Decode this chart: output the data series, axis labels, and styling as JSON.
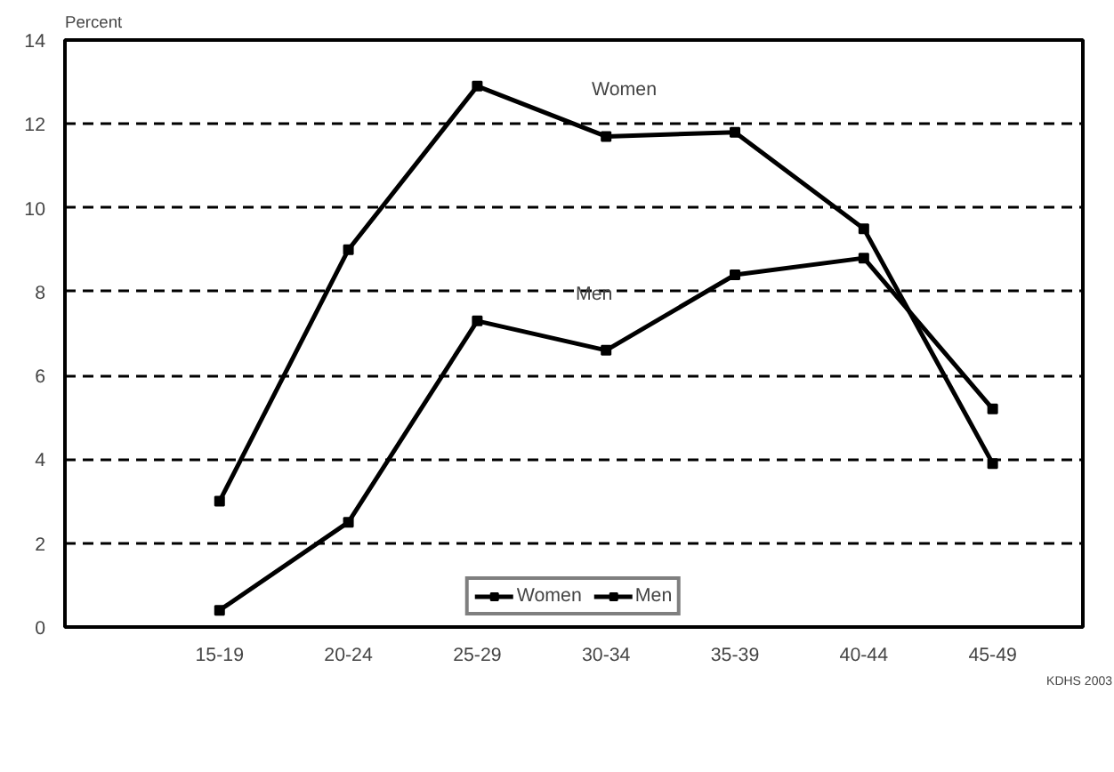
{
  "chart_data": {
    "type": "line",
    "ylabel": "Percent",
    "categories": [
      "15-19",
      "20-24",
      "25-29",
      "30-34",
      "35-39",
      "40-44",
      "45-49"
    ],
    "series": [
      {
        "name": "Women",
        "color": "#000000",
        "values": [
          3.0,
          9.0,
          12.9,
          11.7,
          11.8,
          9.5,
          3.9
        ]
      },
      {
        "name": "Men",
        "color": "#000000",
        "values": [
          0.4,
          2.5,
          7.3,
          6.6,
          8.4,
          8.8,
          5.2
        ]
      }
    ],
    "ylim": [
      0,
      14
    ],
    "yticks": [
      0,
      2,
      4,
      6,
      8,
      10,
      12,
      14
    ],
    "grid": "y",
    "legend": "bottom",
    "marker": "square",
    "line_style": "solid",
    "annotations": [
      "Women",
      "Men",
      "KDHS 2003"
    ]
  }
}
